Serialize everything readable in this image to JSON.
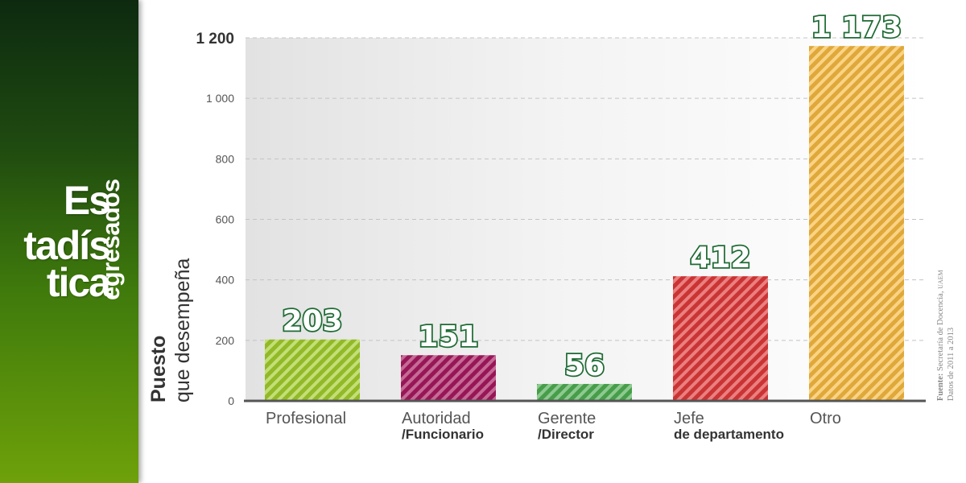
{
  "brand": {
    "lines": [
      "Es",
      "tadís",
      "tica"
    ],
    "side": "egresados"
  },
  "axis_title": {
    "line1": "Puesto",
    "line2": "que desempeña"
  },
  "source": {
    "label": "Fuente:",
    "text": "Secretaría de Docencia,",
    "org": "UAEM",
    "years": "Datos de 2011 a 2013"
  },
  "chart_data": {
    "type": "bar",
    "title": "",
    "xlabel": "",
    "ylabel": "Puesto que desempeña",
    "ylim": [
      0,
      1200
    ],
    "yticks": [
      {
        "value": 0,
        "label": "0"
      },
      {
        "value": 200,
        "label": "200"
      },
      {
        "value": 400,
        "label": "400"
      },
      {
        "value": 600,
        "label": "600"
      },
      {
        "value": 800,
        "label": "800"
      },
      {
        "value": 1000,
        "label": "1 000"
      },
      {
        "value": 1200,
        "label": "1 200"
      }
    ],
    "grid": true,
    "categories": [
      {
        "line1": "Profesional",
        "line2": ""
      },
      {
        "line1": "Autoridad",
        "line2": "/Funcionario"
      },
      {
        "line1": "Gerente",
        "line2": "/Director"
      },
      {
        "line1": "Jefe",
        "line2": "de departamento"
      },
      {
        "line1": "Otro",
        "line2": ""
      }
    ],
    "values": [
      203,
      151,
      56,
      412,
      1173
    ],
    "value_labels": [
      "203",
      "151",
      "56",
      "412",
      "1 173"
    ],
    "colors": [
      "#a2cd2c",
      "#a8195f",
      "#4fae52",
      "#e03a3a",
      "#f8bb40"
    ]
  }
}
